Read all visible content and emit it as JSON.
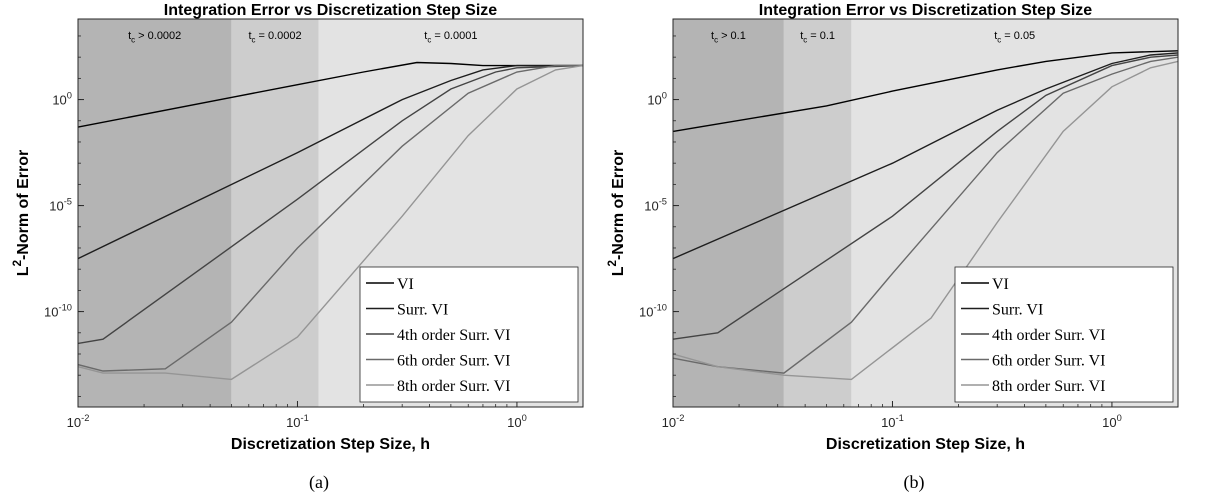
{
  "figure": {
    "captions": [
      "(a)",
      "(b)"
    ]
  },
  "chart_data": [
    {
      "type": "line",
      "title": "Integration Error vs Discretization Step Size",
      "xlabel": "Discretization Step Size, h",
      "ylabel": "L²-Norm of Error",
      "xscale": "log",
      "yscale": "log",
      "xlim": [
        0.01,
        2
      ],
      "ylim_log10": [
        -14.5,
        3.8
      ],
      "xticks": [
        {
          "value": 0.01,
          "label": "10^-2"
        },
        {
          "value": 0.1,
          "label": "10^-1"
        },
        {
          "value": 1,
          "label": "10^0"
        }
      ],
      "yticks": [
        {
          "value": 1.0,
          "label": "10^0"
        },
        {
          "value": 1e-05,
          "label": "10^-5"
        },
        {
          "value": 1e-10,
          "label": "10^-10"
        }
      ],
      "regions": [
        {
          "x0": 0.01,
          "x1": 0.05,
          "label": "t_c > 0.0002",
          "shade": "#b4b4b4"
        },
        {
          "x0": 0.05,
          "x1": 0.125,
          "label": "t_c = 0.0002",
          "shade": "#cdcdcd"
        },
        {
          "x0": 0.125,
          "x1": 2,
          "label": "t_c = 0.0001",
          "shade": "#e3e3e3"
        }
      ],
      "legend_position": "bottom-right",
      "series": [
        {
          "name": "VI",
          "color": "#000000",
          "x": [
            0.01,
            0.05,
            0.1,
            0.2,
            0.35,
            0.5,
            0.7,
            1.0,
            2.0
          ],
          "y_log10": [
            -1.3,
            0.1,
            0.7,
            1.3,
            1.75,
            1.7,
            1.6,
            1.6,
            1.6
          ]
        },
        {
          "name": "Surr. VI",
          "color": "#1e1e1e",
          "x": [
            0.01,
            0.1,
            0.3,
            0.5,
            0.7,
            1.0,
            2.0
          ],
          "y_log10": [
            -7.5,
            -2.5,
            0.0,
            0.9,
            1.4,
            1.6,
            1.6
          ]
        },
        {
          "name": "4th order Surr. VI",
          "color": "#444444",
          "x": [
            0.01,
            0.013,
            0.1,
            0.3,
            0.5,
            0.8,
            1.0,
            2.0
          ],
          "y_log10": [
            -11.5,
            -11.3,
            -4.7,
            -1.0,
            0.5,
            1.3,
            1.5,
            1.6
          ]
        },
        {
          "name": "6th order Surr. VI",
          "color": "#6a6a6a",
          "x": [
            0.01,
            0.013,
            0.025,
            0.05,
            0.1,
            0.3,
            0.6,
            1.0,
            1.5,
            2.0
          ],
          "y_log10": [
            -12.5,
            -12.8,
            -12.7,
            -10.5,
            -7.0,
            -2.2,
            0.3,
            1.3,
            1.6,
            1.6
          ]
        },
        {
          "name": "8th order Surr. VI",
          "color": "#959595",
          "x": [
            0.01,
            0.013,
            0.025,
            0.05,
            0.1,
            0.3,
            0.6,
            1.0,
            1.5,
            2.0
          ],
          "y_log10": [
            -12.6,
            -12.9,
            -12.9,
            -13.2,
            -11.2,
            -5.5,
            -1.7,
            0.5,
            1.4,
            1.6
          ]
        }
      ]
    },
    {
      "type": "line",
      "title": "Integration Error vs Discretization Step Size",
      "xlabel": "Discretization Step Size, h",
      "ylabel": "L²-Norm of Error",
      "xscale": "log",
      "yscale": "log",
      "xlim": [
        0.01,
        2
      ],
      "ylim_log10": [
        -14.5,
        3.8
      ],
      "xticks": [
        {
          "value": 0.01,
          "label": "10^-2"
        },
        {
          "value": 0.1,
          "label": "10^-1"
        },
        {
          "value": 1,
          "label": "10^0"
        }
      ],
      "yticks": [
        {
          "value": 1.0,
          "label": "10^0"
        },
        {
          "value": 1e-05,
          "label": "10^-5"
        },
        {
          "value": 1e-10,
          "label": "10^-10"
        }
      ],
      "regions": [
        {
          "x0": 0.01,
          "x1": 0.032,
          "label": "t_c > 0.1",
          "shade": "#b4b4b4"
        },
        {
          "x0": 0.032,
          "x1": 0.065,
          "label": "t_c = 0.1",
          "shade": "#cdcdcd"
        },
        {
          "x0": 0.065,
          "x1": 2,
          "label": "t_c = 0.05",
          "shade": "#e3e3e3"
        }
      ],
      "legend_position": "bottom-right",
      "series": [
        {
          "name": "VI",
          "color": "#000000",
          "x": [
            0.01,
            0.05,
            0.1,
            0.3,
            0.5,
            1.0,
            2.0
          ],
          "y_log10": [
            -1.5,
            -0.3,
            0.4,
            1.4,
            1.8,
            2.2,
            2.3
          ]
        },
        {
          "name": "Surr. VI",
          "color": "#1e1e1e",
          "x": [
            0.01,
            0.1,
            0.3,
            0.5,
            1.0,
            1.5,
            2.0
          ],
          "y_log10": [
            -7.5,
            -3.0,
            -0.5,
            0.5,
            1.7,
            2.1,
            2.2
          ]
        },
        {
          "name": "4th order Surr. VI",
          "color": "#444444",
          "x": [
            0.01,
            0.016,
            0.1,
            0.3,
            0.5,
            1.0,
            1.5,
            2.0
          ],
          "y_log10": [
            -11.3,
            -11.0,
            -5.5,
            -1.5,
            0.2,
            1.6,
            2.0,
            2.1
          ]
        },
        {
          "name": "6th order Surr. VI",
          "color": "#6a6a6a",
          "x": [
            0.01,
            0.016,
            0.032,
            0.065,
            0.1,
            0.3,
            0.6,
            1.0,
            1.5,
            2.0
          ],
          "y_log10": [
            -12.2,
            -12.6,
            -12.9,
            -10.5,
            -8.2,
            -2.5,
            0.3,
            1.2,
            1.8,
            2.0
          ]
        },
        {
          "name": "8th order Surr. VI",
          "color": "#959595",
          "x": [
            0.01,
            0.016,
            0.032,
            0.065,
            0.15,
            0.3,
            0.6,
            1.0,
            1.5,
            2.0
          ],
          "y_log10": [
            -12.0,
            -12.6,
            -13.0,
            -13.2,
            -10.3,
            -5.8,
            -1.5,
            0.6,
            1.5,
            1.8
          ]
        }
      ]
    }
  ]
}
